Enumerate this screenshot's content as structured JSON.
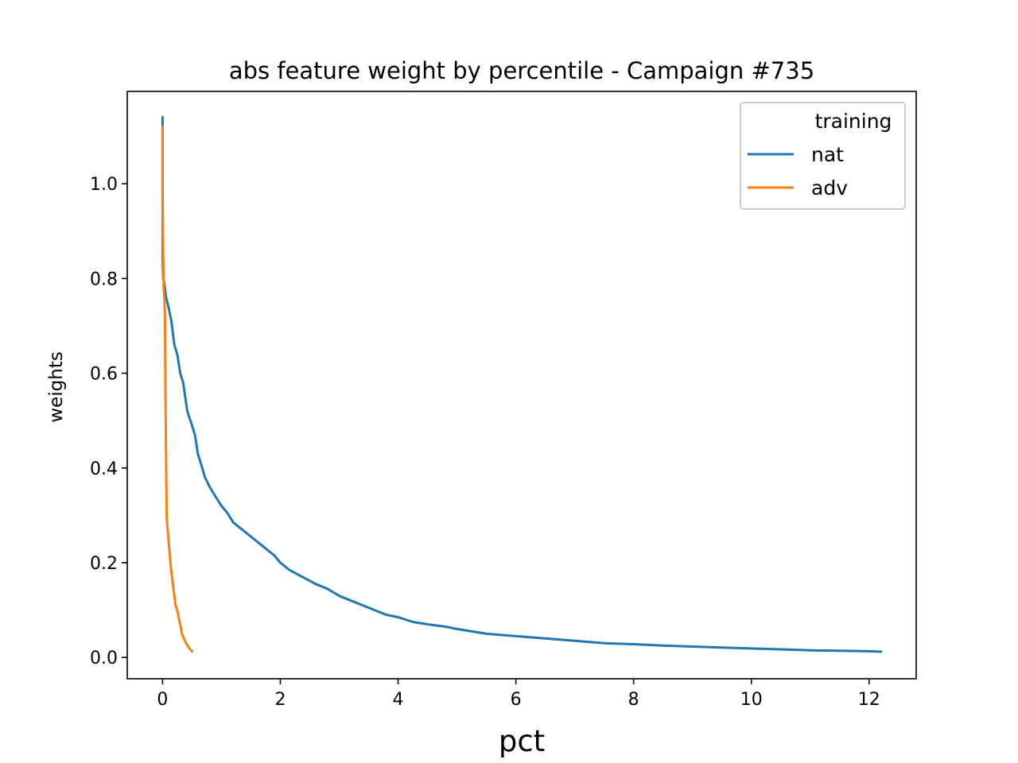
{
  "chart_data": {
    "type": "line",
    "title": "abs feature weight by percentile - Campaign #735",
    "xlabel": "pct",
    "ylabel": "weights",
    "xlim": [
      -0.6,
      12.8
    ],
    "ylim": [
      -0.045,
      1.195
    ],
    "xticks": [
      0,
      2,
      4,
      6,
      8,
      10,
      12
    ],
    "yticks": [
      0.0,
      0.2,
      0.4,
      0.6,
      0.8,
      1.0
    ],
    "xtick_labels": [
      "0",
      "2",
      "4",
      "6",
      "8",
      "10",
      "12"
    ],
    "ytick_labels": [
      "0.0",
      "0.2",
      "0.4",
      "0.6",
      "0.8",
      "1.0"
    ],
    "grid": false,
    "legend": {
      "title": "training",
      "placement": "top-right",
      "entries": [
        "nat",
        "adv"
      ]
    },
    "series": [
      {
        "name": "nat",
        "color": "#1f77b4",
        "x": [
          0,
          0,
          0.01,
          0.03,
          0.06,
          0.1,
          0.15,
          0.2,
          0.25,
          0.3,
          0.35,
          0.42,
          0.5,
          0.55,
          0.6,
          0.65,
          0.72,
          0.8,
          0.9,
          1.0,
          1.1,
          1.2,
          1.35,
          1.5,
          1.6,
          1.75,
          1.9,
          2.0,
          2.15,
          2.3,
          2.45,
          2.6,
          2.8,
          3.0,
          3.2,
          3.4,
          3.6,
          3.8,
          4.0,
          4.25,
          4.5,
          4.8,
          5.0,
          5.5,
          6.0,
          6.5,
          7.0,
          7.5,
          8.0,
          8.5,
          9.0,
          9.5,
          10.0,
          10.5,
          11.0,
          11.5,
          12.0,
          12.2
        ],
        "y": [
          1.14,
          0.85,
          0.8,
          0.79,
          0.76,
          0.74,
          0.71,
          0.66,
          0.64,
          0.6,
          0.58,
          0.52,
          0.49,
          0.47,
          0.43,
          0.41,
          0.38,
          0.36,
          0.34,
          0.32,
          0.305,
          0.285,
          0.27,
          0.255,
          0.245,
          0.23,
          0.215,
          0.2,
          0.185,
          0.175,
          0.165,
          0.155,
          0.145,
          0.13,
          0.12,
          0.11,
          0.1,
          0.09,
          0.085,
          0.075,
          0.07,
          0.065,
          0.06,
          0.05,
          0.045,
          0.04,
          0.035,
          0.03,
          0.028,
          0.025,
          0.023,
          0.021,
          0.019,
          0.017,
          0.015,
          0.014,
          0.013,
          0.012
        ]
      },
      {
        "name": "adv",
        "color": "#ff7f0e",
        "x": [
          0,
          0,
          0.005,
          0.01,
          0.02,
          0.03,
          0.04,
          0.05,
          0.06,
          0.07,
          0.08,
          0.1,
          0.12,
          0.14,
          0.16,
          0.18,
          0.2,
          0.22,
          0.25,
          0.28,
          0.3,
          0.33,
          0.36,
          0.4,
          0.45,
          0.5
        ],
        "y": [
          1.12,
          1.0,
          0.92,
          0.85,
          0.78,
          0.76,
          0.72,
          0.55,
          0.4,
          0.3,
          0.28,
          0.25,
          0.22,
          0.19,
          0.17,
          0.15,
          0.13,
          0.11,
          0.1,
          0.08,
          0.07,
          0.05,
          0.04,
          0.03,
          0.02,
          0.013
        ]
      }
    ]
  }
}
